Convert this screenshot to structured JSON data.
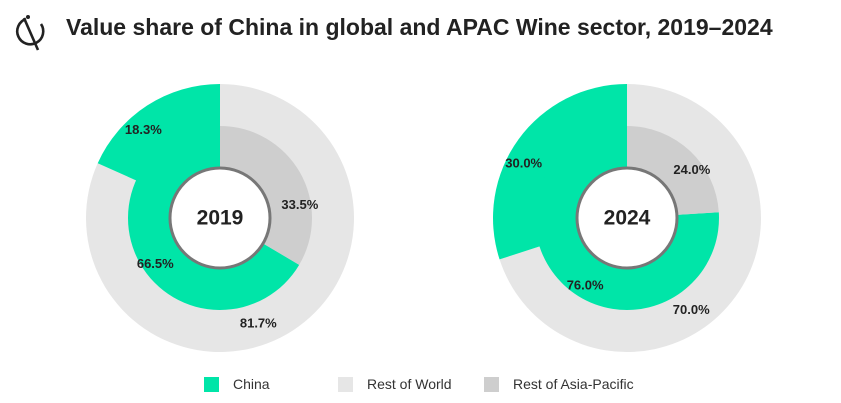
{
  "header": {
    "title": "Value share of China in global and APAC Wine sector, 2019–2024",
    "logo_icon": "brand-logo-icon"
  },
  "colors": {
    "china": "#00E5A8",
    "rest_of_world": "#E6E6E6",
    "rest_of_apac": "#CECECE",
    "title": "#222222"
  },
  "chart_data": [
    {
      "type": "donut",
      "center_label": "2019",
      "outer_ring": {
        "series": [
          {
            "name": "China",
            "value": 18.3,
            "label": "18.3%"
          },
          {
            "name": "Rest of World",
            "value": 81.7,
            "label": "81.7%"
          }
        ]
      },
      "inner_ring": {
        "series": [
          {
            "name": "Rest of Asia-Pacific",
            "value": 33.5,
            "label": "33.5%"
          },
          {
            "name": "China",
            "value": 66.5,
            "label": "66.5%"
          }
        ]
      }
    },
    {
      "type": "donut",
      "center_label": "2024",
      "outer_ring": {
        "series": [
          {
            "name": "China",
            "value": 30.0,
            "label": "30.0%"
          },
          {
            "name": "Rest of World",
            "value": 70.0,
            "label": "70.0%"
          }
        ]
      },
      "inner_ring": {
        "series": [
          {
            "name": "Rest of Asia-Pacific",
            "value": 24.0,
            "label": "24.0%"
          },
          {
            "name": "China",
            "value": 76.0,
            "label": "76.0%"
          }
        ]
      }
    }
  ],
  "legend": {
    "placement": "bottom-center",
    "items": [
      {
        "label": "China",
        "color": "#00E5A8"
      },
      {
        "label": "Rest of World",
        "color": "#E6E6E6"
      },
      {
        "label": "Rest of Asia-Pacific",
        "color": "#CECECE"
      }
    ]
  }
}
